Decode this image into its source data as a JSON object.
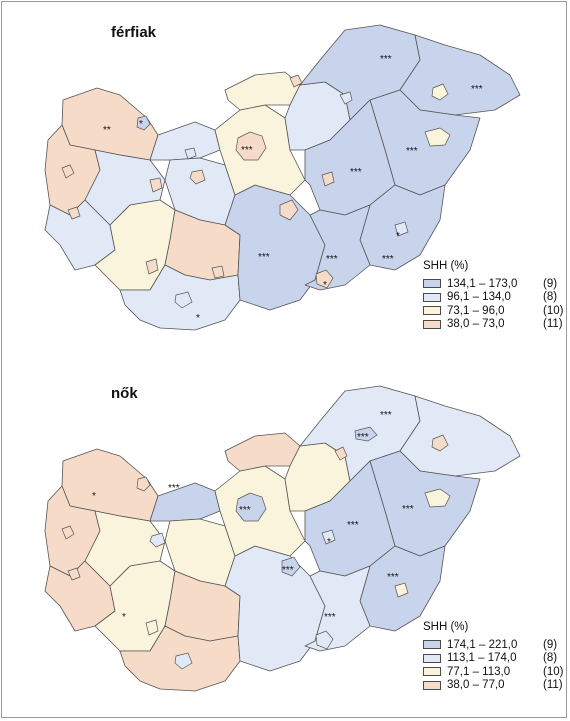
{
  "panels": [
    {
      "title": "férfiak",
      "legend": {
        "title": "SHH (%)",
        "items": [
          {
            "range": "134,1 – 173,0",
            "count": "(9)",
            "color": "#c8d4ec"
          },
          {
            "range": "96,1 – 134,0",
            "count": "(8)",
            "color": "#e2e9f6"
          },
          {
            "range": "73,1 – 96,0",
            "count": "(10)",
            "color": "#fbf4dc"
          },
          {
            "range": "38,0 – 73,0",
            "count": "(11)",
            "color": "#f6dcc8"
          }
        ]
      },
      "markers": [
        "***",
        "***",
        "**",
        "*",
        "***",
        "***",
        "***",
        "***",
        "***",
        "***",
        "*",
        "*",
        "*"
      ]
    },
    {
      "title": "nők",
      "legend": {
        "title": "SHH (%)",
        "items": [
          {
            "range": "174,1 – 221,0",
            "count": "(9)",
            "color": "#c8d4ec"
          },
          {
            "range": "113,1 – 174,0",
            "count": "(8)",
            "color": "#e2e9f6"
          },
          {
            "range": "77,1 – 113,0",
            "count": "(10)",
            "color": "#fbf4dc"
          },
          {
            "range": "38,0 – 77,0",
            "count": "(11)",
            "color": "#f6dcc8"
          }
        ]
      },
      "markers": [
        "***",
        "***",
        "*",
        "***",
        "***",
        "***",
        "***",
        "*",
        "***",
        "***",
        "***",
        "*"
      ]
    }
  ]
}
